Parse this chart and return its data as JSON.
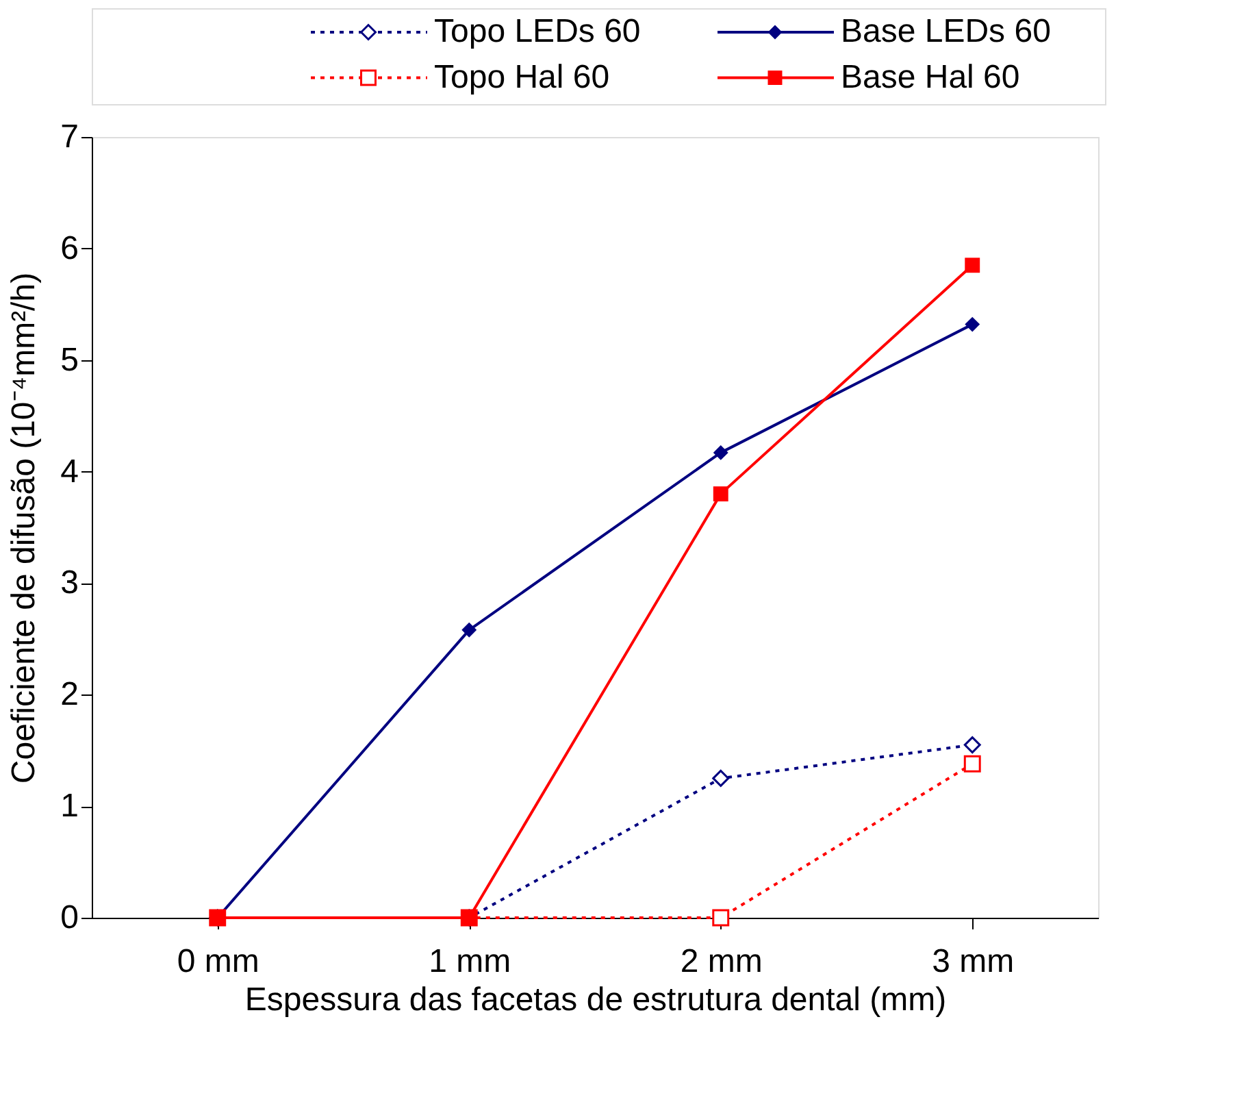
{
  "chart_data": {
    "type": "line",
    "xlabel": "Espessura das facetas de estrutura dental (mm)",
    "ylabel": "Coeficiente de difusão (10⁻⁴mm²/h)",
    "categories": [
      "0 mm",
      "1 mm",
      "2 mm",
      "3 mm"
    ],
    "ylim": [
      0,
      7
    ],
    "yticks": [
      0,
      1,
      2,
      3,
      4,
      5,
      6,
      7
    ],
    "grid": false,
    "legend": "top",
    "series": [
      {
        "name": "Topo LEDs 60",
        "color": "#000080",
        "values": [
          0,
          0,
          1.25,
          1.55
        ],
        "line_style": "dotted",
        "marker": "diamond"
      },
      {
        "name": "Base LEDs 60",
        "color": "#000080",
        "values": [
          0,
          2.58,
          4.17,
          5.32
        ],
        "line_style": "solid",
        "marker": "diamond"
      },
      {
        "name": "Topo Hal 60",
        "color": "#ff0000",
        "values": [
          0,
          0,
          0,
          1.38
        ],
        "line_style": "dotted",
        "marker": "square"
      },
      {
        "name": "Base Hal 60",
        "color": "#ff0000",
        "values": [
          0,
          0,
          3.8,
          5.85
        ],
        "line_style": "solid",
        "marker": "square"
      }
    ]
  }
}
